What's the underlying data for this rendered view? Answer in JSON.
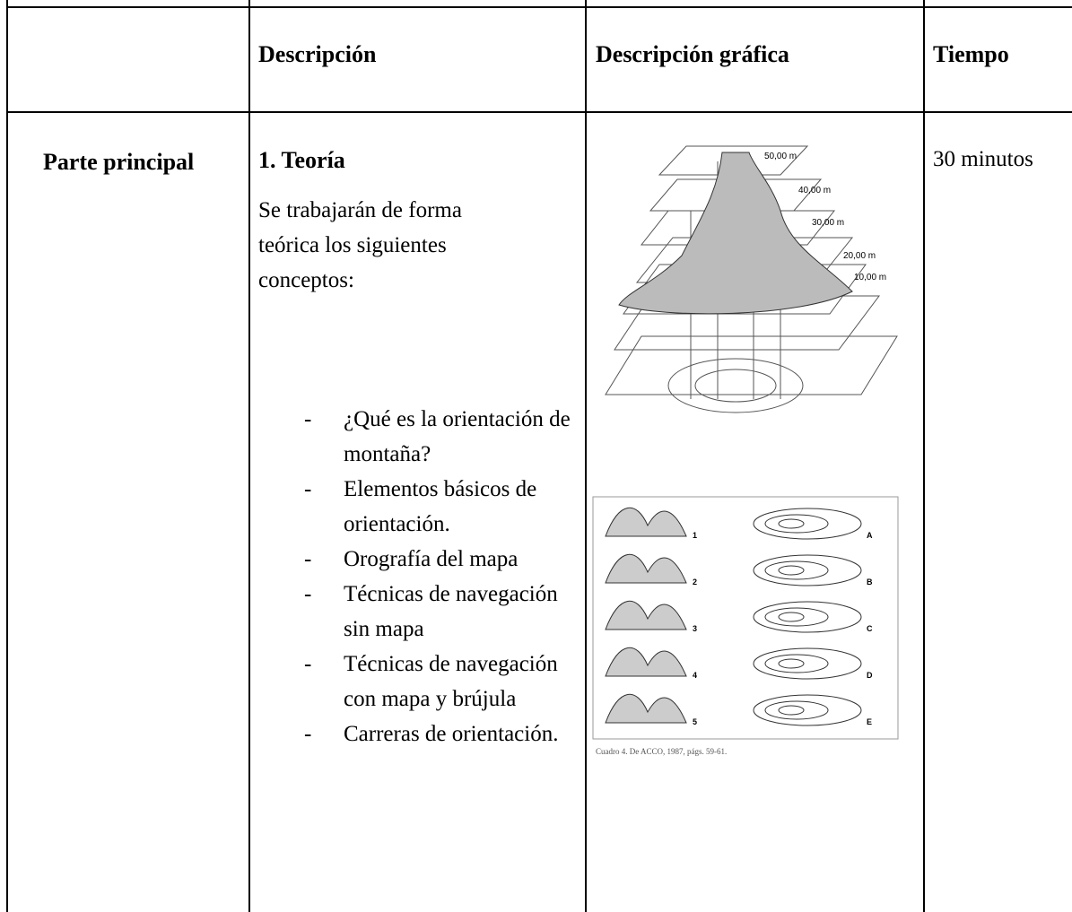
{
  "table": {
    "headers": [
      "Descripción",
      "Descripción gráfica",
      "Tiempo"
    ],
    "row": {
      "label": "Parte principal",
      "section_title": "1. Teoría",
      "intro": "Se trabajarán de forma teórica los siguientes conceptos:",
      "items": [
        "¿Qué es la orientación de montaña?",
        "Elementos básicos de orientación.",
        "Orografía del mapa",
        "Técnicas de navegación sin mapa",
        "Técnicas de navegación con mapa y brújula",
        "Carreras de orientación."
      ],
      "figure1_labels": [
        "50,00 m",
        "40,00 m",
        "30,00 m",
        "20,00 m",
        "10,00 m"
      ],
      "figure2_numbers": [
        "1",
        "2",
        "3",
        "4",
        "5"
      ],
      "figure2_letters": [
        "A",
        "B",
        "C",
        "D",
        "E"
      ],
      "figure2_caption": "Cuadro 4. De ACCO, 1987, págs. 59-61.",
      "time": "30 minutos"
    }
  }
}
